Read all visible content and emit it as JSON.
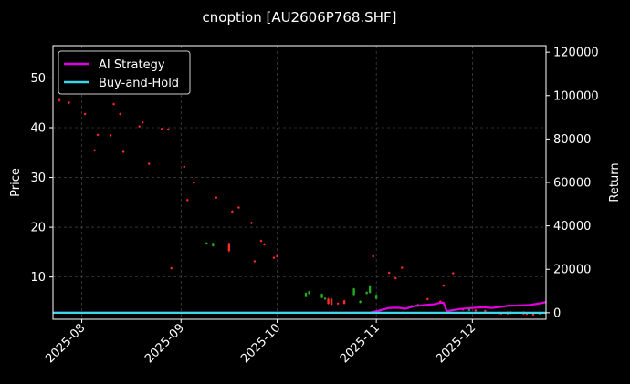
{
  "chart_data": {
    "type": "line",
    "title": "cnoption [AU2606P768.SHF]",
    "xlabel": "",
    "ylabel": "Price",
    "y2label": "Return",
    "x_ticks": [
      "2025-08",
      "2025-09",
      "2025-10",
      "2025-11",
      "2025-12"
    ],
    "x_range": [
      "2025-07-23",
      "2025-12-24"
    ],
    "ylim": [
      1.5,
      56.5
    ],
    "y_ticks": [
      10,
      20,
      30,
      40,
      50
    ],
    "y2lim": [
      -3000,
      123000
    ],
    "y2_ticks": [
      0,
      20000,
      40000,
      60000,
      80000,
      100000,
      120000
    ],
    "grid": true,
    "legend_position": "top-left",
    "background": "#000000",
    "series": [
      {
        "name": "AI Strategy",
        "color": "#e000e0",
        "axis": "right",
        "dates": [
          "2025-07-23",
          "2025-10-30",
          "2025-11-02",
          "2025-11-05",
          "2025-11-08",
          "2025-11-10",
          "2025-11-13",
          "2025-11-16",
          "2025-11-19",
          "2025-11-21",
          "2025-11-22",
          "2025-11-23",
          "2025-11-27",
          "2025-12-02",
          "2025-12-05",
          "2025-12-07",
          "2025-12-10",
          "2025-12-12",
          "2025-12-15",
          "2025-12-19",
          "2025-12-22",
          "2025-12-24"
        ],
        "values": [
          0,
          0,
          1000,
          2200,
          2300,
          1800,
          3100,
          3500,
          3900,
          4600,
          4600,
          700,
          1700,
          2300,
          2500,
          2200,
          2700,
          3200,
          3300,
          3600,
          4300,
          4900
        ]
      },
      {
        "name": "Buy-and-Hold",
        "color": "#3ad8e8",
        "axis": "right",
        "dates": [
          "2025-07-23",
          "2025-12-24"
        ],
        "values": [
          0,
          0
        ]
      }
    ],
    "candles": [
      {
        "date": "2025-07-25",
        "open": 45.8,
        "close": 45.4,
        "high": 46.0,
        "low": 45.2,
        "color": "#ff2a2a"
      },
      {
        "date": "2025-07-28",
        "open": 45.2,
        "close": 44.9,
        "high": 45.3,
        "low": 44.8,
        "color": "#ff2a2a"
      },
      {
        "date": "2025-08-02",
        "open": 42.9,
        "close": 42.6,
        "high": 43.0,
        "low": 42.5,
        "color": "#ff2a2a"
      },
      {
        "date": "2025-08-05",
        "open": 35.6,
        "close": 35.3,
        "high": 35.7,
        "low": 35.2,
        "color": "#ff2a2a"
      },
      {
        "date": "2025-08-06",
        "open": 38.7,
        "close": 38.4,
        "high": 38.8,
        "low": 38.3,
        "color": "#ff2a2a"
      },
      {
        "date": "2025-08-10",
        "open": 38.6,
        "close": 38.3,
        "high": 38.7,
        "low": 38.2,
        "color": "#ff2a2a"
      },
      {
        "date": "2025-08-11",
        "open": 44.9,
        "close": 44.6,
        "high": 45.0,
        "low": 44.5,
        "color": "#ff2a2a"
      },
      {
        "date": "2025-08-13",
        "open": 42.9,
        "close": 42.6,
        "high": 43.0,
        "low": 42.5,
        "color": "#ff2a2a"
      },
      {
        "date": "2025-08-14",
        "open": 35.3,
        "close": 35.0,
        "high": 35.4,
        "low": 34.9,
        "color": "#ff2a2a"
      },
      {
        "date": "2025-08-19",
        "open": 40.4,
        "close": 40.1,
        "high": 40.5,
        "low": 40.0,
        "color": "#ff2a2a"
      },
      {
        "date": "2025-08-20",
        "open": 41.2,
        "close": 40.9,
        "high": 41.3,
        "low": 40.8,
        "color": "#ff2a2a"
      },
      {
        "date": "2025-08-22",
        "open": 32.9,
        "close": 32.6,
        "high": 33.0,
        "low": 32.5,
        "color": "#ff2a2a"
      },
      {
        "date": "2025-08-26",
        "open": 39.9,
        "close": 39.6,
        "high": 40.0,
        "low": 39.5,
        "color": "#ff2a2a"
      },
      {
        "date": "2025-08-28",
        "open": 39.8,
        "close": 39.5,
        "high": 39.9,
        "low": 39.4,
        "color": "#ff2a2a"
      },
      {
        "date": "2025-08-29",
        "open": 11.9,
        "close": 11.6,
        "high": 12.0,
        "low": 11.5,
        "color": "#ff2a2a"
      },
      {
        "date": "2025-09-02",
        "open": 32.3,
        "close": 32.0,
        "high": 32.4,
        "low": 31.9,
        "color": "#ff2a2a"
      },
      {
        "date": "2025-09-03",
        "open": 25.6,
        "close": 25.3,
        "high": 25.7,
        "low": 25.2,
        "color": "#ff2a2a"
      },
      {
        "date": "2025-09-05",
        "open": 29.1,
        "close": 28.8,
        "high": 29.2,
        "low": 28.7,
        "color": "#ff2a2a"
      },
      {
        "date": "2025-09-09",
        "open": 16.7,
        "close": 16.9,
        "high": 17.0,
        "low": 16.6,
        "color": "#22aa22"
      },
      {
        "date": "2025-09-11",
        "open": 16.2,
        "close": 16.8,
        "high": 16.9,
        "low": 16.1,
        "color": "#22aa22"
      },
      {
        "date": "2025-09-12",
        "open": 26.1,
        "close": 25.8,
        "high": 26.2,
        "low": 25.7,
        "color": "#ff2a2a"
      },
      {
        "date": "2025-09-16",
        "open": 16.8,
        "close": 15.2,
        "high": 16.9,
        "low": 15.0,
        "color": "#ff2a2a"
      },
      {
        "date": "2025-09-17",
        "open": 23.3,
        "close": 23.0,
        "high": 23.4,
        "low": 22.9,
        "color": "#ff2a2a"
      },
      {
        "date": "2025-09-19",
        "open": 24.1,
        "close": 23.8,
        "high": 24.2,
        "low": 23.7,
        "color": "#ff2a2a"
      },
      {
        "date": "2025-09-23",
        "open": 21.0,
        "close": 20.7,
        "high": 21.1,
        "low": 20.6,
        "color": "#ff2a2a"
      },
      {
        "date": "2025-09-24",
        "open": 13.3,
        "close": 13.0,
        "high": 13.4,
        "low": 12.9,
        "color": "#ff2a2a"
      },
      {
        "date": "2025-09-26",
        "open": 17.4,
        "close": 17.1,
        "high": 17.5,
        "low": 17.0,
        "color": "#ff2a2a"
      },
      {
        "date": "2025-09-27",
        "open": 16.7,
        "close": 16.4,
        "high": 16.8,
        "low": 16.3,
        "color": "#ff2a2a"
      },
      {
        "date": "2025-09-30",
        "open": 14.0,
        "close": 13.7,
        "high": 14.1,
        "low": 13.6,
        "color": "#ff2a2a"
      },
      {
        "date": "2025-10-01",
        "open": 14.3,
        "close": 14.0,
        "high": 14.4,
        "low": 13.9,
        "color": "#ff2a2a"
      },
      {
        "date": "2025-10-10",
        "open": 6.0,
        "close": 6.8,
        "high": 6.9,
        "low": 5.9,
        "color": "#22aa22"
      },
      {
        "date": "2025-10-11",
        "open": 6.6,
        "close": 7.1,
        "high": 7.2,
        "low": 6.5,
        "color": "#22aa22"
      },
      {
        "date": "2025-10-15",
        "open": 5.8,
        "close": 6.6,
        "high": 6.7,
        "low": 5.7,
        "color": "#22aa22"
      },
      {
        "date": "2025-10-16",
        "open": 5.5,
        "close": 5.8,
        "high": 5.9,
        "low": 5.4,
        "color": "#22aa22"
      },
      {
        "date": "2025-10-17",
        "open": 5.6,
        "close": 4.6,
        "high": 5.8,
        "low": 4.5,
        "color": "#ff2a2a"
      },
      {
        "date": "2025-10-18",
        "open": 5.6,
        "close": 4.4,
        "high": 5.8,
        "low": 4.3,
        "color": "#ff2a2a"
      },
      {
        "date": "2025-10-20",
        "open": 4.8,
        "close": 4.5,
        "high": 4.9,
        "low": 4.4,
        "color": "#ff2a2a"
      },
      {
        "date": "2025-10-22",
        "open": 5.3,
        "close": 4.6,
        "high": 5.4,
        "low": 4.5,
        "color": "#ff2a2a"
      },
      {
        "date": "2025-10-25",
        "open": 6.4,
        "close": 7.7,
        "high": 7.8,
        "low": 6.3,
        "color": "#22aa22"
      },
      {
        "date": "2025-10-27",
        "open": 4.8,
        "close": 5.2,
        "high": 5.3,
        "low": 4.7,
        "color": "#22aa22"
      },
      {
        "date": "2025-10-29",
        "open": 6.6,
        "close": 7.0,
        "high": 7.1,
        "low": 6.5,
        "color": "#22aa22"
      },
      {
        "date": "2025-10-30",
        "open": 6.8,
        "close": 8.1,
        "high": 8.2,
        "low": 6.7,
        "color": "#22aa22"
      },
      {
        "date": "2025-10-31",
        "open": 14.3,
        "close": 14.0,
        "high": 14.4,
        "low": 13.9,
        "color": "#ff2a2a"
      },
      {
        "date": "2025-11-01",
        "open": 5.6,
        "close": 6.4,
        "high": 6.5,
        "low": 5.5,
        "color": "#22aa22"
      },
      {
        "date": "2025-11-05",
        "open": 11.0,
        "close": 10.7,
        "high": 11.1,
        "low": 10.6,
        "color": "#ff2a2a"
      },
      {
        "date": "2025-11-07",
        "open": 9.9,
        "close": 9.6,
        "high": 10.0,
        "low": 9.5,
        "color": "#ff2a2a"
      },
      {
        "date": "2025-11-09",
        "open": 12.0,
        "close": 11.7,
        "high": 12.1,
        "low": 11.6,
        "color": "#ff2a2a"
      },
      {
        "date": "2025-11-12",
        "open": 3.9,
        "close": 4.3,
        "high": 4.4,
        "low": 3.8,
        "color": "#22aa22"
      },
      {
        "date": "2025-11-14",
        "open": 4.2,
        "close": 4.5,
        "high": 4.6,
        "low": 4.1,
        "color": "#22aa22"
      },
      {
        "date": "2025-11-17",
        "open": 5.7,
        "close": 5.4,
        "high": 5.8,
        "low": 5.3,
        "color": "#ff2a2a"
      },
      {
        "date": "2025-11-21",
        "open": 5.2,
        "close": 4.9,
        "high": 5.3,
        "low": 4.8,
        "color": "#ff2a2a"
      },
      {
        "date": "2025-11-22",
        "open": 8.4,
        "close": 8.1,
        "high": 8.5,
        "low": 8.0,
        "color": "#ff2a2a"
      },
      {
        "date": "2025-11-25",
        "open": 10.9,
        "close": 10.6,
        "high": 11.0,
        "low": 10.5,
        "color": "#ff2a2a"
      },
      {
        "date": "2025-11-28",
        "open": 3.6,
        "close": 3.3,
        "high": 3.7,
        "low": 3.2,
        "color": "#ff2a2a"
      },
      {
        "date": "2025-11-30",
        "open": 3.2,
        "close": 3.5,
        "high": 3.6,
        "low": 3.1,
        "color": "#22aa22"
      },
      {
        "date": "2025-12-02",
        "open": 3.4,
        "close": 3.1,
        "high": 3.5,
        "low": 3.0,
        "color": "#ff2a2a"
      },
      {
        "date": "2025-12-05",
        "open": 3.3,
        "close": 3.0,
        "high": 3.4,
        "low": 2.9,
        "color": "#ff2a2a"
      },
      {
        "date": "2025-12-09",
        "open": 2.9,
        "close": 2.6,
        "high": 3.0,
        "low": 2.5,
        "color": "#ff2a2a"
      },
      {
        "date": "2025-12-10",
        "open": 2.9,
        "close": 2.5,
        "high": 3.0,
        "low": 2.4,
        "color": "#ff2a2a"
      },
      {
        "date": "2025-12-12",
        "open": 3.0,
        "close": 2.5,
        "high": 3.1,
        "low": 2.4,
        "color": "#ff2a2a"
      },
      {
        "date": "2025-12-13",
        "open": 2.6,
        "close": 3.0,
        "high": 3.1,
        "low": 2.5,
        "color": "#22aa22"
      },
      {
        "date": "2025-12-17",
        "open": 3.0,
        "close": 2.5,
        "high": 3.1,
        "low": 2.4,
        "color": "#ff2a2a"
      },
      {
        "date": "2025-12-18",
        "open": 2.9,
        "close": 2.4,
        "high": 3.0,
        "low": 2.3,
        "color": "#ff2a2a"
      },
      {
        "date": "2025-12-20",
        "open": 2.8,
        "close": 2.3,
        "high": 2.9,
        "low": 2.2,
        "color": "#ff2a2a"
      },
      {
        "date": "2025-12-22",
        "open": 2.5,
        "close": 2.9,
        "high": 3.0,
        "low": 2.4,
        "color": "#22aa22"
      }
    ]
  }
}
